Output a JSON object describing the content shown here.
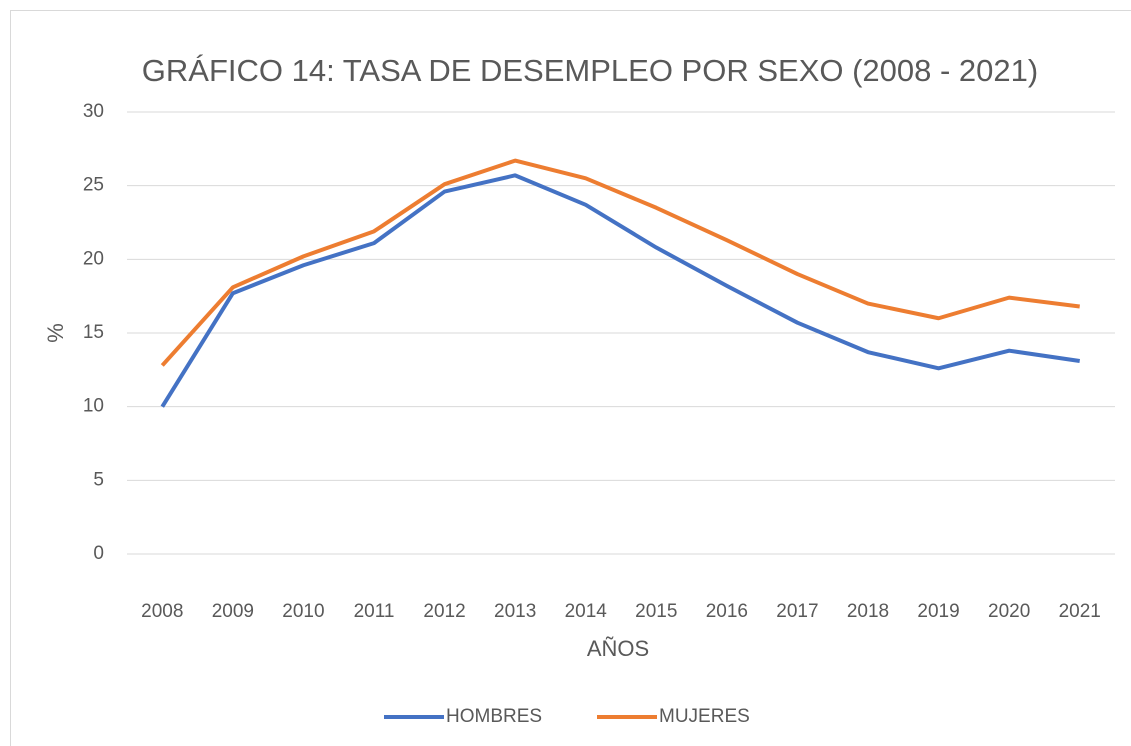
{
  "chart_data": {
    "type": "line",
    "title": "GRÁFICO 14: TASA DE DESEMPLEO POR SEXO (2008 - 2021)",
    "x_label": "AÑOS",
    "y_label": "%",
    "categories": [
      "2008",
      "2009",
      "2010",
      "2011",
      "2012",
      "2013",
      "2014",
      "2015",
      "2016",
      "2017",
      "2018",
      "2019",
      "2020",
      "2021"
    ],
    "series": [
      {
        "name": "HOMBRES",
        "color": "#4472c4",
        "values": [
          10.0,
          17.7,
          19.6,
          21.1,
          24.6,
          25.7,
          23.7,
          20.8,
          18.2,
          15.7,
          13.7,
          12.6,
          13.8,
          13.1
        ]
      },
      {
        "name": "MUJERES",
        "color": "#ed7d31",
        "values": [
          12.8,
          18.1,
          20.2,
          21.9,
          25.1,
          26.7,
          25.5,
          23.5,
          21.3,
          19.0,
          17.0,
          16.0,
          17.4,
          16.8
        ]
      }
    ],
    "ylim": [
      0,
      30
    ],
    "yticks": [
      0,
      5,
      10,
      15,
      20,
      25,
      30
    ],
    "grid": true,
    "legend": "bottom"
  }
}
